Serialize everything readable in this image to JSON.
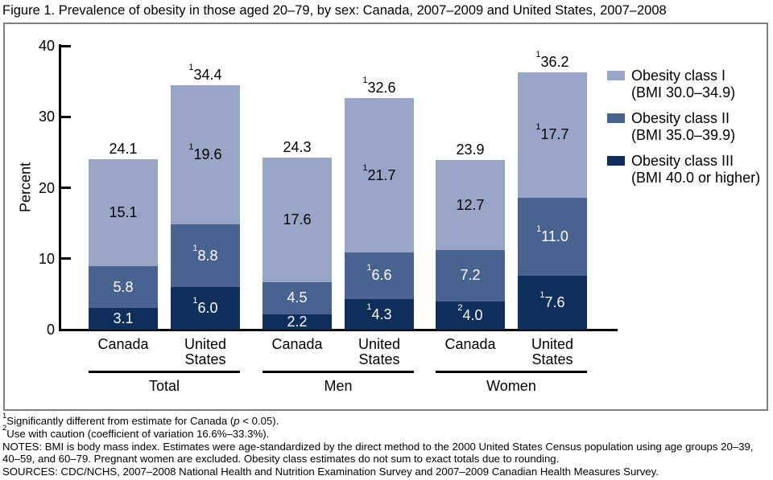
{
  "chart_data": {
    "type": "bar",
    "stacked": true,
    "title": "Figure 1. Prevalence of obesity in those aged 20–79, by sex: Canada, 2007–2009 and United States, 2007–2008",
    "ylabel": "Percent",
    "ylim": [
      0,
      40
    ],
    "yticks": [
      0,
      10,
      20,
      30,
      40
    ],
    "grid": false,
    "legend_position": "right",
    "stack_order_bottom_to_top": [
      "III",
      "II",
      "I"
    ],
    "classes": {
      "I": {
        "name": "Obesity class I",
        "bmi": "(BMI 30.0–34.9)",
        "color": "#99A5C6",
        "label_color": "#000000"
      },
      "II": {
        "name": "Obesity class II",
        "bmi": "(BMI 35.0–39.9)",
        "color": "#48638F",
        "label_color": "#FFFFFF"
      },
      "III": {
        "name": "Obesity class III",
        "bmi": "(BMI 40.0 or higher)",
        "color": "#0E2E5C",
        "label_color": "#FFFFFF"
      }
    },
    "legend_order": [
      "I",
      "II",
      "III"
    ],
    "groups": [
      {
        "label": "Total",
        "bar_indexes": [
          0,
          1
        ]
      },
      {
        "label": "Men",
        "bar_indexes": [
          2,
          3
        ]
      },
      {
        "label": "Women",
        "bar_indexes": [
          4,
          5
        ]
      }
    ],
    "bars": [
      {
        "group": "Total",
        "country": "Canada",
        "country_lines": [
          "Canada"
        ],
        "total": {
          "sup": "",
          "text": "24.1"
        },
        "segments": [
          {
            "class": "III",
            "value": 3.1,
            "sup": "",
            "text": "3.1"
          },
          {
            "class": "II",
            "value": 5.8,
            "sup": "",
            "text": "5.8"
          },
          {
            "class": "I",
            "value": 15.1,
            "sup": "",
            "text": "15.1"
          }
        ]
      },
      {
        "group": "Total",
        "country": "United States",
        "country_lines": [
          "United",
          "States"
        ],
        "total": {
          "sup": "1",
          "text": "34.4"
        },
        "segments": [
          {
            "class": "III",
            "value": 6.0,
            "sup": "1",
            "text": "6.0"
          },
          {
            "class": "II",
            "value": 8.8,
            "sup": "1",
            "text": "8.8"
          },
          {
            "class": "I",
            "value": 19.6,
            "sup": "1",
            "text": "19.6"
          }
        ]
      },
      {
        "group": "Men",
        "country": "Canada",
        "country_lines": [
          "Canada"
        ],
        "total": {
          "sup": "",
          "text": "24.3"
        },
        "segments": [
          {
            "class": "III",
            "value": 2.2,
            "sup": "",
            "text": "2.2"
          },
          {
            "class": "II",
            "value": 4.5,
            "sup": "",
            "text": "4.5"
          },
          {
            "class": "I",
            "value": 17.6,
            "sup": "",
            "text": "17.6"
          }
        ]
      },
      {
        "group": "Men",
        "country": "United States",
        "country_lines": [
          "United",
          "States"
        ],
        "total": {
          "sup": "1",
          "text": "32.6"
        },
        "segments": [
          {
            "class": "III",
            "value": 4.3,
            "sup": "1",
            "text": "4.3"
          },
          {
            "class": "II",
            "value": 6.6,
            "sup": "1",
            "text": "6.6"
          },
          {
            "class": "I",
            "value": 21.7,
            "sup": "1",
            "text": "21.7"
          }
        ]
      },
      {
        "group": "Women",
        "country": "Canada",
        "country_lines": [
          "Canada"
        ],
        "total": {
          "sup": "",
          "text": "23.9"
        },
        "segments": [
          {
            "class": "III",
            "value": 4.0,
            "sup": "2",
            "text": "4.0"
          },
          {
            "class": "II",
            "value": 7.2,
            "sup": "",
            "text": "7.2"
          },
          {
            "class": "I",
            "value": 12.7,
            "sup": "",
            "text": "12.7"
          }
        ]
      },
      {
        "group": "Women",
        "country": "United States",
        "country_lines": [
          "United",
          "States"
        ],
        "total": {
          "sup": "1",
          "text": "36.2"
        },
        "segments": [
          {
            "class": "III",
            "value": 7.6,
            "sup": "1",
            "text": "7.6"
          },
          {
            "class": "II",
            "value": 11.0,
            "sup": "1",
            "text": "11.0"
          },
          {
            "class": "I",
            "value": 17.7,
            "sup": "1",
            "text": "17.7"
          }
        ]
      }
    ]
  },
  "footnotes": [
    {
      "sup": "1",
      "pre": "Significantly different from estimate for Canada (",
      "italic": "p",
      "post": " < 0.05)."
    },
    {
      "sup": "2",
      "pre": "Use with caution (coefficient of variation 16.6%–33.3%).",
      "italic": "",
      "post": ""
    },
    {
      "sup": "",
      "pre": "NOTES: BMI is body mass index. Estimates were age-standardized by the direct method to the 2000 United States Census population using age groups 20–39, 40–59, and 60–79. Pregnant women are excluded. Obesity class estimates do not sum to exact totals due to rounding.",
      "italic": "",
      "post": ""
    },
    {
      "sup": "",
      "pre": "SOURCES: CDC/NCHS, 2007–2008 National Health and Nutrition Examination Survey and 2007–2009 Canadian Health Measures Survey.",
      "italic": "",
      "post": ""
    }
  ]
}
